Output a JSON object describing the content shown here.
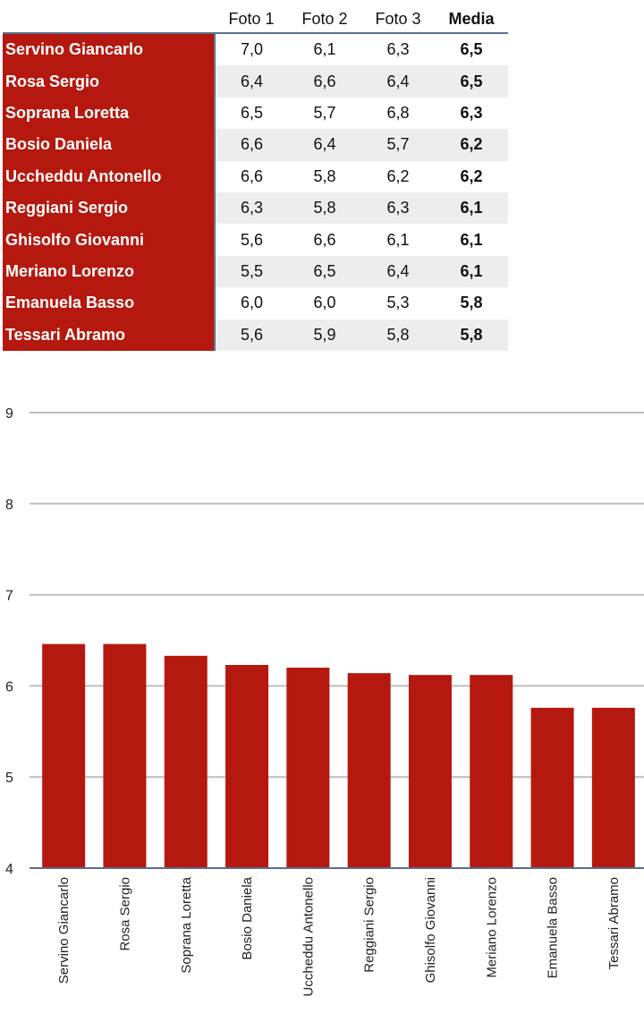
{
  "table": {
    "headers": [
      "",
      "Foto 1",
      "Foto 2",
      "Foto 3",
      "Media"
    ],
    "rows": [
      {
        "name": "Servino Giancarlo",
        "f1": "7,0",
        "f2": "6,1",
        "f3": "6,3",
        "avg": "6,5"
      },
      {
        "name": "Rosa Sergio",
        "f1": "6,4",
        "f2": "6,6",
        "f3": "6,4",
        "avg": "6,5"
      },
      {
        "name": "Soprana Loretta",
        "f1": "6,5",
        "f2": "5,7",
        "f3": "6,8",
        "avg": "6,3"
      },
      {
        "name": "Bosio Daniela",
        "f1": "6,6",
        "f2": "6,4",
        "f3": "5,7",
        "avg": "6,2"
      },
      {
        "name": "Uccheddu Antonello",
        "f1": "6,6",
        "f2": "5,8",
        "f3": "6,2",
        "avg": "6,2"
      },
      {
        "name": "Reggiani Sergio",
        "f1": "6,3",
        "f2": "5,8",
        "f3": "6,3",
        "avg": "6,1"
      },
      {
        "name": "Ghisolfo Giovanni",
        "f1": "5,6",
        "f2": "6,6",
        "f3": "6,1",
        "avg": "6,1"
      },
      {
        "name": "Meriano Lorenzo",
        "f1": "5,5",
        "f2": "6,5",
        "f3": "6,4",
        "avg": "6,1"
      },
      {
        "name": "Emanuela Basso",
        "f1": "6,0",
        "f2": "6,0",
        "f3": "5,3",
        "avg": "5,8"
      },
      {
        "name": "Tessari Abramo",
        "f1": "5,6",
        "f2": "5,9",
        "f3": "5,8",
        "avg": "5,8"
      }
    ]
  },
  "colors": {
    "bar": "#b5180e",
    "name_cell_bg": "#b5180e",
    "stripe": "#ededed",
    "grid": "#bdbdbd",
    "axis": "#5a6f8e"
  },
  "chart_data": {
    "type": "bar",
    "categories": [
      "Servino Giancarlo",
      "Rosa Sergio",
      "Soprana Loretta",
      "Bosio Daniela",
      "Uccheddu Antonello",
      "Reggiani Sergio",
      "Ghisolfo Giovanni",
      "Meriano Lorenzo",
      "Emanuela Basso",
      "Tessari Abramo"
    ],
    "values": [
      6.46,
      6.46,
      6.33,
      6.23,
      6.2,
      6.14,
      6.12,
      6.12,
      5.76,
      5.76
    ],
    "yticks": [
      "4",
      "5",
      "6",
      "7",
      "8",
      "9"
    ],
    "ylim": [
      4,
      9
    ],
    "title": "",
    "xlabel": "",
    "ylabel": "",
    "grid": true,
    "legend": "none"
  }
}
